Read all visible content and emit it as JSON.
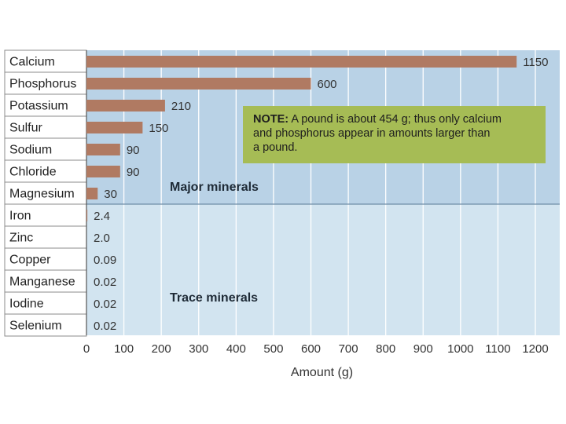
{
  "chart_data": {
    "type": "bar",
    "orientation": "horizontal",
    "categories": [
      "Calcium",
      "Phosphorus",
      "Potassium",
      "Sulfur",
      "Sodium",
      "Chloride",
      "Magnesium",
      "Iron",
      "Zinc",
      "Copper",
      "Manganese",
      "Iodine",
      "Selenium"
    ],
    "values": [
      1150,
      600,
      210,
      150,
      90,
      90,
      30,
      2.4,
      2.0,
      0.09,
      0.02,
      0.02,
      0.02
    ],
    "value_labels": [
      "1150",
      "600",
      "210",
      "150",
      "90",
      "90",
      "30",
      "2.4",
      "2.0",
      "0.09",
      "0.02",
      "0.02",
      "0.02"
    ],
    "xlabel": "Amount (g)",
    "xlim": [
      0,
      1200
    ],
    "xticks": [
      0,
      100,
      200,
      300,
      400,
      500,
      600,
      700,
      800,
      900,
      1000,
      1100,
      1200
    ],
    "grid": true,
    "groups": [
      {
        "label": "Major minerals",
        "count": 7
      },
      {
        "label": "Trace minerals",
        "count": 6
      }
    ],
    "note": {
      "lead": "NOTE:",
      "lines": [
        " A pound is about 454 g; thus only calcium",
        "and phosphorus appear in amounts larger than",
        "a pound."
      ]
    }
  },
  "colors": {
    "bar": "#b07a62",
    "major_bg": "#b9d2e6",
    "trace_bg": "#d2e4f0",
    "grid": "#ffffff",
    "note_bg": "#a6bc55",
    "label_border": "#8b8b8b"
  }
}
